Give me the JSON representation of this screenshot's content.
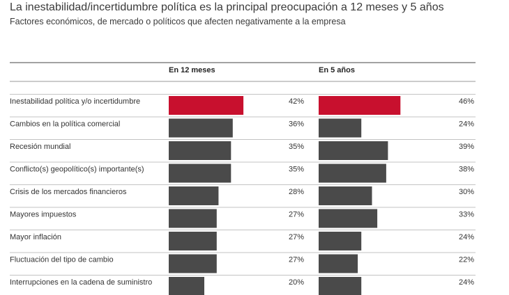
{
  "title": "La inestabilidad/incertidumbre política es la principal preocupación a 12 meses y 5 años",
  "subtitle": "Factores económicos, de mercado o políticos que afecten negativamente a la empresa",
  "chart_data": {
    "type": "bar",
    "orientation": "horizontal",
    "categories": [
      "Inestabilidad política y/o incertidumbre",
      "Cambios en la política comercial",
      "Recesión mundial",
      "Conflicto(s) geopolítico(s) importante(s)",
      "Crisis de los mercados financieros",
      "Mayores impuestos",
      "Mayor inflación",
      "Fluctuación del tipo de cambio",
      "Interrupciones en la cadena de suministro"
    ],
    "series": [
      {
        "name": "En 12 meses",
        "values": [
          42,
          36,
          35,
          35,
          28,
          27,
          27,
          27,
          20
        ]
      },
      {
        "name": "En 5 años",
        "values": [
          46,
          24,
          39,
          38,
          30,
          33,
          24,
          22,
          24
        ]
      }
    ],
    "value_labels": {
      "En 12 meses": [
        "42%",
        "36%",
        "35%",
        "35%",
        "28%",
        "27%",
        "27%",
        "27%",
        "20%"
      ],
      "En 5 años": [
        "46%",
        "24%",
        "39%",
        "38%",
        "30%",
        "33%",
        "24%",
        "22%",
        "24%"
      ]
    },
    "unit": "%",
    "colors": {
      "highlight": "#c8102e",
      "default": "#4a4a4a",
      "rule": "#888888"
    },
    "highlight_index": 0
  }
}
